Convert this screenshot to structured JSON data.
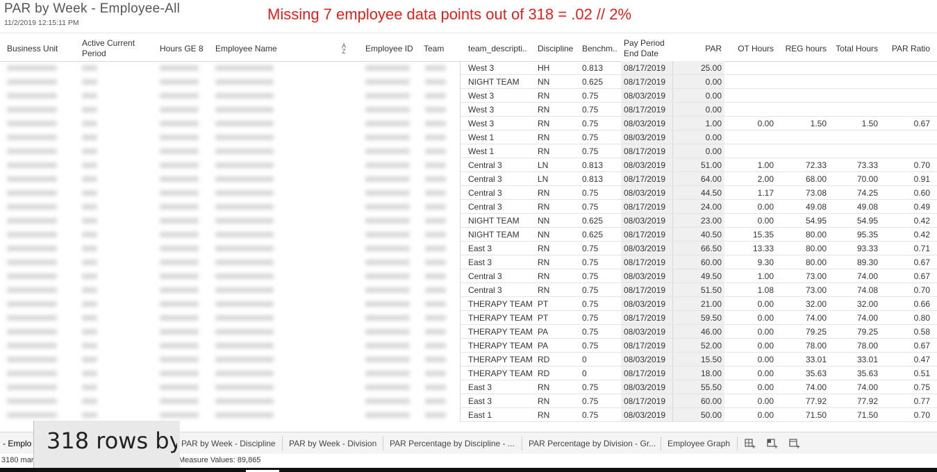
{
  "header": {
    "title": "PAR by Week - Employee-All",
    "timestamp": "11/2/2019 12:15:11 PM",
    "annotation": "Missing 7 employee data points out of 318 = .02 // 2%"
  },
  "columns": {
    "business_unit": "Business Unit",
    "active_current_period": "Active Current Period",
    "hours_ge8": "Hours GE 8",
    "employee_name": "Employee Name",
    "employee_id": "Employee ID",
    "team": "Team",
    "team_description": "team_descripti..",
    "discipline": "Discipline",
    "benchmark": "Benchm..",
    "pay_period_end": "Pay Period End Date",
    "par": "PAR",
    "ot_hours": "OT Hours",
    "reg_hours": "REG hours",
    "total_hours": "Total Hours",
    "par_ratio": "PAR Ratio"
  },
  "rows": [
    {
      "team_desc": "West 3",
      "disc": "HH",
      "bench": "0.813",
      "date": "08/17/2019",
      "par": "25.00",
      "ot": "",
      "reg": "",
      "total": "",
      "ratio": ""
    },
    {
      "team_desc": "NIGHT TEAM",
      "disc": "NN",
      "bench": "0.625",
      "date": "08/17/2019",
      "par": "0.00",
      "ot": "",
      "reg": "",
      "total": "",
      "ratio": ""
    },
    {
      "team_desc": "West 3",
      "disc": "RN",
      "bench": "0.75",
      "date": "08/03/2019",
      "par": "0.00",
      "ot": "",
      "reg": "",
      "total": "",
      "ratio": ""
    },
    {
      "team_desc": "West 3",
      "disc": "RN",
      "bench": "0.75",
      "date": "08/17/2019",
      "par": "0.00",
      "ot": "",
      "reg": "",
      "total": "",
      "ratio": ""
    },
    {
      "team_desc": "West 3",
      "disc": "RN",
      "bench": "0.75",
      "date": "08/03/2019",
      "par": "1.00",
      "ot": "0.00",
      "reg": "1.50",
      "total": "1.50",
      "ratio": "0.67"
    },
    {
      "team_desc": "West 1",
      "disc": "RN",
      "bench": "0.75",
      "date": "08/03/2019",
      "par": "0.00",
      "ot": "",
      "reg": "",
      "total": "",
      "ratio": ""
    },
    {
      "team_desc": "West 1",
      "disc": "RN",
      "bench": "0.75",
      "date": "08/17/2019",
      "par": "0.00",
      "ot": "",
      "reg": "",
      "total": "",
      "ratio": ""
    },
    {
      "team_desc": "Central 3",
      "disc": "LN",
      "bench": "0.813",
      "date": "08/03/2019",
      "par": "51.00",
      "ot": "1.00",
      "reg": "72.33",
      "total": "73.33",
      "ratio": "0.70"
    },
    {
      "team_desc": "Central 3",
      "disc": "LN",
      "bench": "0.813",
      "date": "08/17/2019",
      "par": "64.00",
      "ot": "2.00",
      "reg": "68.00",
      "total": "70.00",
      "ratio": "0.91"
    },
    {
      "team_desc": "Central 3",
      "disc": "RN",
      "bench": "0.75",
      "date": "08/03/2019",
      "par": "44.50",
      "ot": "1.17",
      "reg": "73.08",
      "total": "74.25",
      "ratio": "0.60"
    },
    {
      "team_desc": "Central 3",
      "disc": "RN",
      "bench": "0.75",
      "date": "08/17/2019",
      "par": "24.00",
      "ot": "0.00",
      "reg": "49.08",
      "total": "49.08",
      "ratio": "0.49"
    },
    {
      "team_desc": "NIGHT TEAM",
      "disc": "NN",
      "bench": "0.625",
      "date": "08/03/2019",
      "par": "23.00",
      "ot": "0.00",
      "reg": "54.95",
      "total": "54.95",
      "ratio": "0.42"
    },
    {
      "team_desc": "NIGHT TEAM",
      "disc": "NN",
      "bench": "0.625",
      "date": "08/17/2019",
      "par": "40.50",
      "ot": "15.35",
      "reg": "80.00",
      "total": "95.35",
      "ratio": "0.42"
    },
    {
      "team_desc": "East 3",
      "disc": "RN",
      "bench": "0.75",
      "date": "08/03/2019",
      "par": "66.50",
      "ot": "13.33",
      "reg": "80.00",
      "total": "93.33",
      "ratio": "0.71"
    },
    {
      "team_desc": "East 3",
      "disc": "RN",
      "bench": "0.75",
      "date": "08/17/2019",
      "par": "60.00",
      "ot": "9.30",
      "reg": "80.00",
      "total": "89.30",
      "ratio": "0.67"
    },
    {
      "team_desc": "Central 3",
      "disc": "RN",
      "bench": "0.75",
      "date": "08/03/2019",
      "par": "49.50",
      "ot": "1.00",
      "reg": "73.00",
      "total": "74.00",
      "ratio": "0.67"
    },
    {
      "team_desc": "Central 3",
      "disc": "RN",
      "bench": "0.75",
      "date": "08/17/2019",
      "par": "51.50",
      "ot": "1.08",
      "reg": "73.00",
      "total": "74.08",
      "ratio": "0.70"
    },
    {
      "team_desc": "THERAPY TEAM",
      "disc": "PT",
      "bench": "0.75",
      "date": "08/03/2019",
      "par": "21.00",
      "ot": "0.00",
      "reg": "32.00",
      "total": "32.00",
      "ratio": "0.66"
    },
    {
      "team_desc": "THERAPY TEAM",
      "disc": "PT",
      "bench": "0.75",
      "date": "08/17/2019",
      "par": "59.50",
      "ot": "0.00",
      "reg": "74.00",
      "total": "74.00",
      "ratio": "0.80"
    },
    {
      "team_desc": "THERAPY TEAM",
      "disc": "PA",
      "bench": "0.75",
      "date": "08/03/2019",
      "par": "46.00",
      "ot": "0.00",
      "reg": "79.25",
      "total": "79.25",
      "ratio": "0.58"
    },
    {
      "team_desc": "THERAPY TEAM",
      "disc": "PA",
      "bench": "0.75",
      "date": "08/17/2019",
      "par": "52.00",
      "ot": "0.00",
      "reg": "78.00",
      "total": "78.00",
      "ratio": "0.67"
    },
    {
      "team_desc": "THERAPY TEAM",
      "disc": "RD",
      "bench": "0",
      "date": "08/03/2019",
      "par": "15.50",
      "ot": "0.00",
      "reg": "33.01",
      "total": "33.01",
      "ratio": "0.47"
    },
    {
      "team_desc": "THERAPY TEAM",
      "disc": "RD",
      "bench": "0",
      "date": "08/17/2019",
      "par": "18.00",
      "ot": "0.00",
      "reg": "35.63",
      "total": "35.63",
      "ratio": "0.51"
    },
    {
      "team_desc": "East 3",
      "disc": "RN",
      "bench": "0.75",
      "date": "08/03/2019",
      "par": "55.50",
      "ot": "0.00",
      "reg": "74.00",
      "total": "74.00",
      "ratio": "0.75"
    },
    {
      "team_desc": "East 3",
      "disc": "RN",
      "bench": "0.75",
      "date": "08/17/2019",
      "par": "60.00",
      "ot": "0.00",
      "reg": "77.92",
      "total": "77.92",
      "ratio": "0.77"
    },
    {
      "team_desc": "East 1",
      "disc": "RN",
      "bench": "0.75",
      "date": "08/03/2019",
      "par": "50.00",
      "ot": "0.00",
      "reg": "71.50",
      "total": "71.50",
      "ratio": "0.70"
    }
  ],
  "tabs": {
    "active": "- Emplo",
    "t2": "PAR by Week - Discipline",
    "t3": "PAR by Week - Division",
    "t4": "PAR Percentage by Discipline - ...",
    "t5": "PAR Percentage by Division - Gr...",
    "t6": "Employee Graph"
  },
  "status": {
    "marks": "3180 mar",
    "measure": "Measure Values: 89,865"
  },
  "overlay": {
    "rows_text": "318 rows by ."
  },
  "icons": {
    "new_sheet": "new-worksheet-icon",
    "new_dashboard": "new-dashboard-icon",
    "new_story": "new-story-icon"
  }
}
